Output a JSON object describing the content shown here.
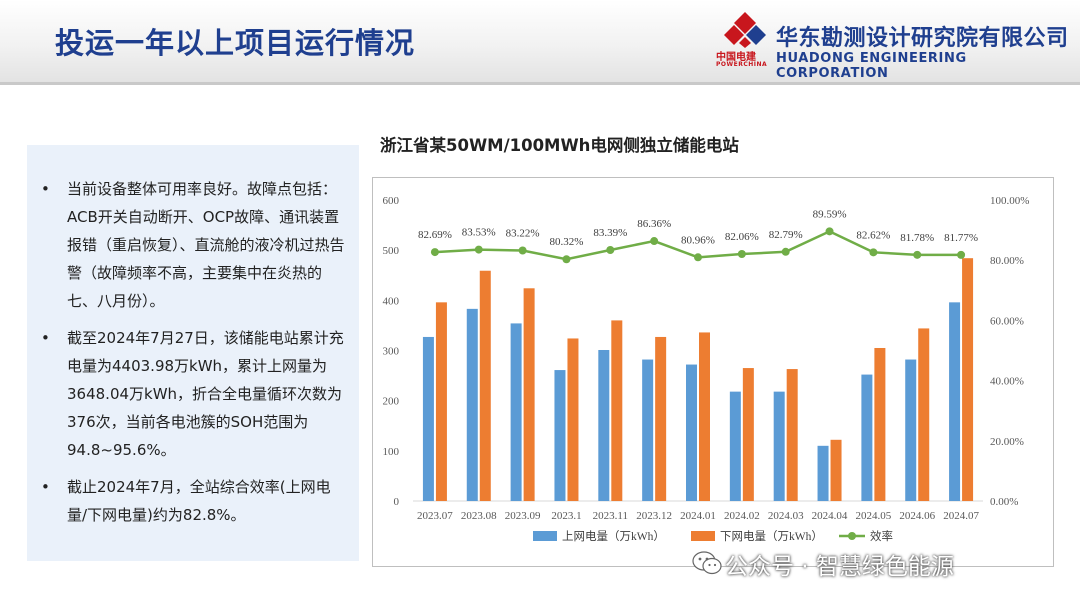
{
  "header": {
    "title": "投运一年以上项目运行情况",
    "company_cn": "华东勘测设计研究院有限公司",
    "company_en": "HUADONG ENGINEERING CORPORATION",
    "logo_cn": "中国电建",
    "logo_en": "POWERCHINA"
  },
  "panel": {
    "bullets": [
      {
        "symbol": "•",
        "text": "当前设备整体可用率良好。故障点包括：ACB开关自动断开、OCP故障、通讯装置报错（重启恢复）、直流舱的液冷机过热告警（故障频率不高，主要集中在炎热的七、八月份）。"
      },
      {
        "symbol": "•",
        "text": "截至2024年7月27日，该储能电站累计充电量为4403.98万kWh，累计上网量为3648.04万kWh，折合全电量循环次数为376次，当前各电池簇的SOH范围为94.8~95.6%。"
      },
      {
        "symbol": "•",
        "text": "截止2024年7月，全站综合效率(上网电量/下网电量)约为82.8%。"
      }
    ]
  },
  "chart_data": {
    "type": "bar+line",
    "title": "浙江省某50WM/100MWh电网侧独立储能电站",
    "categories": [
      "2023.07",
      "2023.08",
      "2023.09",
      "2023.1",
      "2023.11",
      "2023.12",
      "2024.01",
      "2024.02",
      "2024.03",
      "2024.04",
      "2024.05",
      "2024.06",
      "2024.07"
    ],
    "series": [
      {
        "name": "上网电量（万kWh）",
        "type": "bar",
        "axis": "left",
        "color": "#5b9bd5",
        "values": [
          327,
          383,
          354,
          261,
          301,
          282,
          272,
          218,
          218,
          110,
          252,
          282,
          396
        ]
      },
      {
        "name": "下网电量（万kWh）",
        "type": "bar",
        "axis": "left",
        "color": "#ed7d31",
        "values": [
          396,
          459,
          424,
          324,
          360,
          327,
          336,
          265,
          263,
          122,
          305,
          344,
          484
        ]
      },
      {
        "name": "效率",
        "type": "line",
        "axis": "right",
        "color": "#70ad47",
        "values": [
          82.69,
          83.53,
          83.22,
          80.32,
          83.39,
          86.36,
          80.96,
          82.06,
          82.79,
          89.59,
          82.62,
          81.78,
          81.77
        ],
        "labels": [
          "82.69%",
          "83.53%",
          "83.22%",
          "80.32%",
          "83.39%",
          "86.36%",
          "80.96%",
          "82.06%",
          "82.79%",
          "89.59%",
          "82.62%",
          "81.78%",
          "81.77%"
        ]
      }
    ],
    "y_left": {
      "min": 0,
      "max": 600,
      "ticks": [
        0,
        100,
        200,
        300,
        400,
        500,
        600
      ]
    },
    "y_right": {
      "min": 0,
      "max": 100,
      "ticks": [
        "0.00%",
        "20.00%",
        "40.00%",
        "60.00%",
        "80.00%",
        "100.00%"
      ]
    },
    "legend_position": "bottom"
  },
  "watermark": {
    "text": "公众号 · 智慧绿色能源"
  }
}
